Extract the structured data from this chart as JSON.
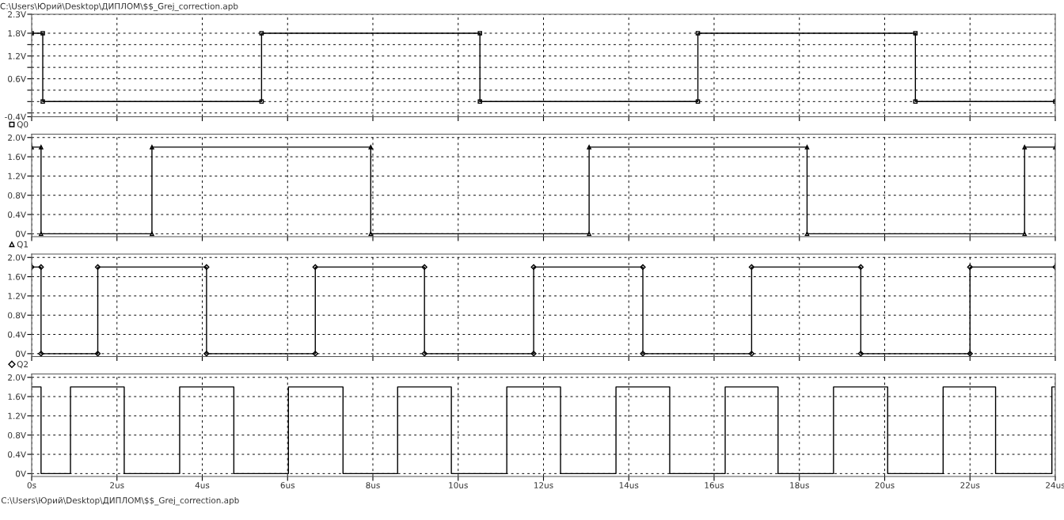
{
  "chart_data": [
    {
      "type": "line",
      "annotations": [
        "C:\\Users\\Юрий\\Desktop\\ДИПЛОМ\\$$_Grej_correction.apb"
      ],
      "xlim": [
        0,
        24
      ],
      "xticks": [
        {
          "value": 0,
          "label": null
        },
        {
          "value": 2,
          "label": null
        },
        {
          "value": 4,
          "label": null
        },
        {
          "value": 6,
          "label": null
        },
        {
          "value": 8,
          "label": null
        },
        {
          "value": 10,
          "label": null
        },
        {
          "value": 12,
          "label": null
        },
        {
          "value": 14,
          "label": null
        },
        {
          "value": 16,
          "label": null
        },
        {
          "value": 18,
          "label": null
        },
        {
          "value": 20,
          "label": null
        },
        {
          "value": 22,
          "label": null
        },
        {
          "value": 24,
          "label": null
        }
      ],
      "ylim": [
        -0.4,
        2.3
      ],
      "yticks": [
        {
          "value": 2.3,
          "label": "2.3V"
        },
        {
          "value": 1.8,
          "label": "1.8V"
        },
        {
          "value": 1.5,
          "label": null
        },
        {
          "value": 1.2,
          "label": "1.2V"
        },
        {
          "value": 0.9,
          "label": null
        },
        {
          "value": 0.6,
          "label": "0.6V"
        },
        {
          "value": 0.3,
          "label": null
        },
        {
          "value": 0,
          "label": null
        },
        {
          "value": -0.3,
          "label": null
        },
        {
          "value": -0.4,
          "label": "-0.4V"
        }
      ],
      "tick_labels": "y",
      "grid": true,
      "legend": "bottom left",
      "marker": "square",
      "line_style": "solid",
      "series": [
        {
          "name": "Q0",
          "color": "#000000",
          "x": [
            0,
            0.26,
            0.26,
            5.39,
            5.39,
            10.51,
            10.51,
            15.62,
            15.62,
            20.72,
            20.72,
            24
          ],
          "values": [
            1.8,
            1.8,
            0,
            0,
            1.8,
            1.8,
            0,
            0,
            1.8,
            1.8,
            0,
            0
          ]
        }
      ]
    },
    {
      "type": "line",
      "xlim": [
        0,
        24
      ],
      "xticks": [
        {
          "value": 0,
          "label": null
        },
        {
          "value": 2,
          "label": null
        },
        {
          "value": 4,
          "label": null
        },
        {
          "value": 6,
          "label": null
        },
        {
          "value": 8,
          "label": null
        },
        {
          "value": 10,
          "label": null
        },
        {
          "value": 12,
          "label": null
        },
        {
          "value": 14,
          "label": null
        },
        {
          "value": 16,
          "label": null
        },
        {
          "value": 18,
          "label": null
        },
        {
          "value": 20,
          "label": null
        },
        {
          "value": 22,
          "label": null
        },
        {
          "value": 24,
          "label": null
        }
      ],
      "ylim": [
        -0.06,
        2.07
      ],
      "yticks": [
        {
          "value": 0,
          "label": "0V"
        },
        {
          "value": 0.4,
          "label": "0.4V"
        },
        {
          "value": 0.8,
          "label": "0.8V"
        },
        {
          "value": 1.2,
          "label": "1.2V"
        },
        {
          "value": 1.6,
          "label": "1.6V"
        },
        {
          "value": 2.0,
          "label": "2.0V"
        }
      ],
      "tick_labels": "y",
      "grid": true,
      "legend": "bottom left",
      "marker": "triangle",
      "line_style": "solid",
      "series": [
        {
          "name": "Q1",
          "color": "#000000",
          "x": [
            0,
            0.22,
            0.22,
            2.82,
            2.82,
            7.95,
            7.95,
            13.07,
            13.07,
            18.18,
            18.18,
            23.28,
            23.28,
            24
          ],
          "values": [
            1.8,
            1.8,
            0,
            0,
            1.8,
            1.8,
            0,
            0,
            1.8,
            1.8,
            0,
            0,
            1.8,
            1.8
          ]
        }
      ]
    },
    {
      "type": "line",
      "xlim": [
        0,
        24
      ],
      "xticks": [
        {
          "value": 0,
          "label": null
        },
        {
          "value": 2,
          "label": null
        },
        {
          "value": 4,
          "label": null
        },
        {
          "value": 6,
          "label": null
        },
        {
          "value": 8,
          "label": null
        },
        {
          "value": 10,
          "label": null
        },
        {
          "value": 12,
          "label": null
        },
        {
          "value": 14,
          "label": null
        },
        {
          "value": 16,
          "label": null
        },
        {
          "value": 18,
          "label": null
        },
        {
          "value": 20,
          "label": null
        },
        {
          "value": 22,
          "label": null
        },
        {
          "value": 24,
          "label": null
        }
      ],
      "ylim": [
        -0.06,
        2.07
      ],
      "yticks": [
        {
          "value": 0,
          "label": "0V"
        },
        {
          "value": 0.4,
          "label": "0.4V"
        },
        {
          "value": 0.8,
          "label": "0.8V"
        },
        {
          "value": 1.2,
          "label": "1.2V"
        },
        {
          "value": 1.6,
          "label": "1.6V"
        },
        {
          "value": 2.0,
          "label": "2.0V"
        }
      ],
      "tick_labels": "y",
      "grid": true,
      "legend": "bottom left",
      "marker": "diamond",
      "line_style": "solid",
      "series": [
        {
          "name": "Q2",
          "color": "#000000",
          "x": [
            0,
            0.22,
            0.22,
            1.55,
            1.55,
            4.1,
            4.1,
            6.65,
            6.65,
            9.21,
            9.21,
            11.77,
            11.77,
            14.33,
            14.33,
            16.88,
            16.88,
            19.44,
            19.44,
            22.0,
            22.0,
            24
          ],
          "values": [
            1.8,
            1.8,
            0,
            0,
            1.8,
            1.8,
            0,
            0,
            1.8,
            1.8,
            0,
            0,
            1.8,
            1.8,
            0,
            0,
            1.8,
            1.8,
            0,
            0,
            1.8,
            1.8
          ]
        }
      ]
    },
    {
      "type": "line",
      "annotations": [
        "C:\\Users\\Юрий\\Desktop\\ДИПЛОМ\\$$_Grej_correction.apb"
      ],
      "xlim": [
        0,
        24
      ],
      "xticks": [
        {
          "value": 0,
          "label": "0s"
        },
        {
          "value": 2,
          "label": "2us"
        },
        {
          "value": 4,
          "label": "4us"
        },
        {
          "value": 6,
          "label": "6us"
        },
        {
          "value": 8,
          "label": "8us"
        },
        {
          "value": 10,
          "label": "10us"
        },
        {
          "value": 12,
          "label": "12us"
        },
        {
          "value": 14,
          "label": "14us"
        },
        {
          "value": 16,
          "label": "16us"
        },
        {
          "value": 18,
          "label": "18us"
        },
        {
          "value": 20,
          "label": "20us"
        },
        {
          "value": 22,
          "label": "22us"
        },
        {
          "value": 24,
          "label": "24us"
        }
      ],
      "ylim": [
        -0.06,
        2.07
      ],
      "yticks": [
        {
          "value": 0,
          "label": "0V"
        },
        {
          "value": 0.4,
          "label": "0.4V"
        },
        {
          "value": 0.8,
          "label": "0.8V"
        },
        {
          "value": 1.2,
          "label": "1.2V"
        },
        {
          "value": 1.6,
          "label": "1.6V"
        },
        {
          "value": 2.0,
          "label": "2.0V"
        }
      ],
      "grid": true,
      "line_style": "solid",
      "series": [
        {
          "color": "#000000",
          "x": [
            0,
            0.22,
            0.22,
            0.91,
            0.91,
            2.17,
            2.17,
            3.47,
            3.47,
            4.74,
            4.74,
            6.02,
            6.02,
            7.3,
            7.3,
            8.58,
            8.58,
            9.84,
            9.84,
            11.14,
            11.14,
            12.4,
            12.4,
            13.7,
            13.7,
            14.96,
            14.96,
            16.26,
            16.26,
            17.5,
            17.5,
            18.8,
            18.8,
            20.07,
            20.07,
            21.37,
            21.37,
            22.6,
            22.6,
            23.92,
            23.92,
            24
          ],
          "values": [
            1.8,
            1.8,
            0,
            0,
            1.8,
            1.8,
            0,
            0,
            1.8,
            1.8,
            0,
            0,
            1.8,
            1.8,
            0,
            0,
            1.8,
            1.8,
            0,
            0,
            1.8,
            1.8,
            0,
            0,
            1.8,
            1.8,
            0,
            0,
            1.8,
            1.8,
            0,
            0,
            1.8,
            1.8,
            0,
            0,
            1.8,
            1.8,
            0,
            0,
            1.8,
            1.8
          ]
        }
      ]
    }
  ]
}
